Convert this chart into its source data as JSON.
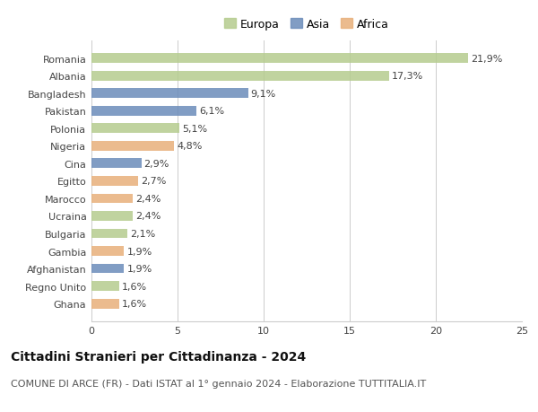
{
  "countries": [
    "Romania",
    "Albania",
    "Bangladesh",
    "Pakistan",
    "Polonia",
    "Nigeria",
    "Cina",
    "Egitto",
    "Marocco",
    "Ucraina",
    "Bulgaria",
    "Gambia",
    "Afghanistan",
    "Regno Unito",
    "Ghana"
  ],
  "values": [
    21.9,
    17.3,
    9.1,
    6.1,
    5.1,
    4.8,
    2.9,
    2.7,
    2.4,
    2.4,
    2.1,
    1.9,
    1.9,
    1.6,
    1.6
  ],
  "continents": [
    "Europa",
    "Europa",
    "Asia",
    "Asia",
    "Europa",
    "Africa",
    "Asia",
    "Africa",
    "Africa",
    "Europa",
    "Europa",
    "Africa",
    "Asia",
    "Europa",
    "Africa"
  ],
  "colors": {
    "Europa": "#b5cc8e",
    "Asia": "#6b8cba",
    "Africa": "#e8b07a"
  },
  "xlim": [
    0,
    25
  ],
  "xticks": [
    0,
    5,
    10,
    15,
    20,
    25
  ],
  "title": "Cittadini Stranieri per Cittadinanza - 2024",
  "subtitle": "COMUNE DI ARCE (FR) - Dati ISTAT al 1° gennaio 2024 - Elaborazione TUTTITALIA.IT",
  "legend_order": [
    "Europa",
    "Asia",
    "Africa"
  ],
  "background_color": "#ffffff",
  "grid_color": "#cccccc",
  "bar_height": 0.55,
  "label_fontsize": 8,
  "title_fontsize": 10,
  "subtitle_fontsize": 8,
  "tick_fontsize": 8,
  "legend_fontsize": 9
}
